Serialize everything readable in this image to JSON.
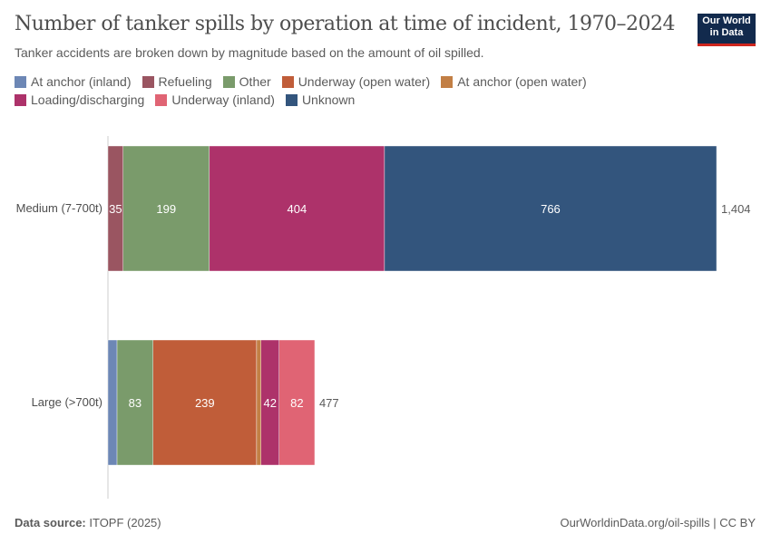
{
  "header": {
    "title": "Number of tanker spills by operation at time of incident, 1970–2024",
    "subtitle": "Tanker accidents are broken down by magnitude based on the amount of oil spilled.",
    "logo": "Our World in Data"
  },
  "footer": {
    "source_label": "Data source:",
    "source": "ITOPF (2025)",
    "url": "OurWorldinData.org/oil-spills | CC BY"
  },
  "chart_data": {
    "type": "bar",
    "orientation": "horizontal",
    "stacked": true,
    "title": "Number of tanker spills by operation at time of incident, 1970–2024",
    "categories": [
      "Medium (7-700t)",
      "Large (>700t)"
    ],
    "totals": [
      "1,404",
      "477"
    ],
    "xlim": [
      0,
      1404
    ],
    "series": [
      {
        "name": "At anchor (inland)",
        "color": "#6d87b5",
        "values": [
          0,
          21
        ]
      },
      {
        "name": "Refueling",
        "color": "#9a5561",
        "values": [
          35,
          0
        ]
      },
      {
        "name": "Other",
        "color": "#7a9b6b",
        "values": [
          199,
          83
        ]
      },
      {
        "name": "Underway (open water)",
        "color": "#c05d39",
        "values": [
          0,
          239
        ]
      },
      {
        "name": "At anchor (open water)",
        "color": "#c27f45",
        "values": [
          0,
          10
        ]
      },
      {
        "name": "Loading/discharging",
        "color": "#ad326a",
        "values": [
          404,
          42
        ]
      },
      {
        "name": "Underway (inland)",
        "color": "#e06474",
        "values": [
          0,
          82
        ]
      },
      {
        "name": "Unknown",
        "color": "#33557d",
        "values": [
          766,
          0
        ]
      }
    ],
    "labeled_min": 30
  }
}
